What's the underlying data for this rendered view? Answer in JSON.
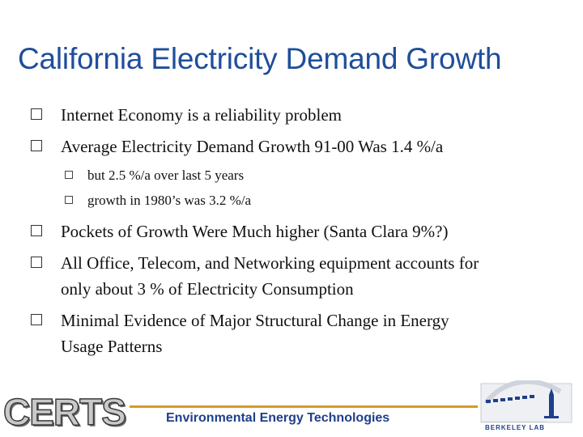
{
  "slide": {
    "title": "California Electricity Demand Growth",
    "bullets": [
      "Internet Economy is a reliability problem",
      "Average Electricity Demand Growth 91-00 Was 1.4 %/a"
    ],
    "sub_bullets": [
      "but 2.5 %/a over last 5 years",
      "growth in 1980’s was 3.2 %/a"
    ],
    "bullets_after": [
      "Pockets of Growth Were Much higher (Santa Clara 9%?)",
      "All Office, Telecom, and Networking equipment accounts for",
      "only about 3 % of Electricity Consumption",
      "Minimal Evidence of Major Structural Change in Energy",
      "Usage Patterns"
    ]
  },
  "footer": {
    "certs_logo": "CERTS",
    "tagline": "Environmental Energy Technologies",
    "lab_logo_text": "BERKELEY LAB"
  },
  "colors": {
    "title": "#1f4e9a",
    "rule": "#d79a2c",
    "tagline": "#1f3f8a"
  }
}
